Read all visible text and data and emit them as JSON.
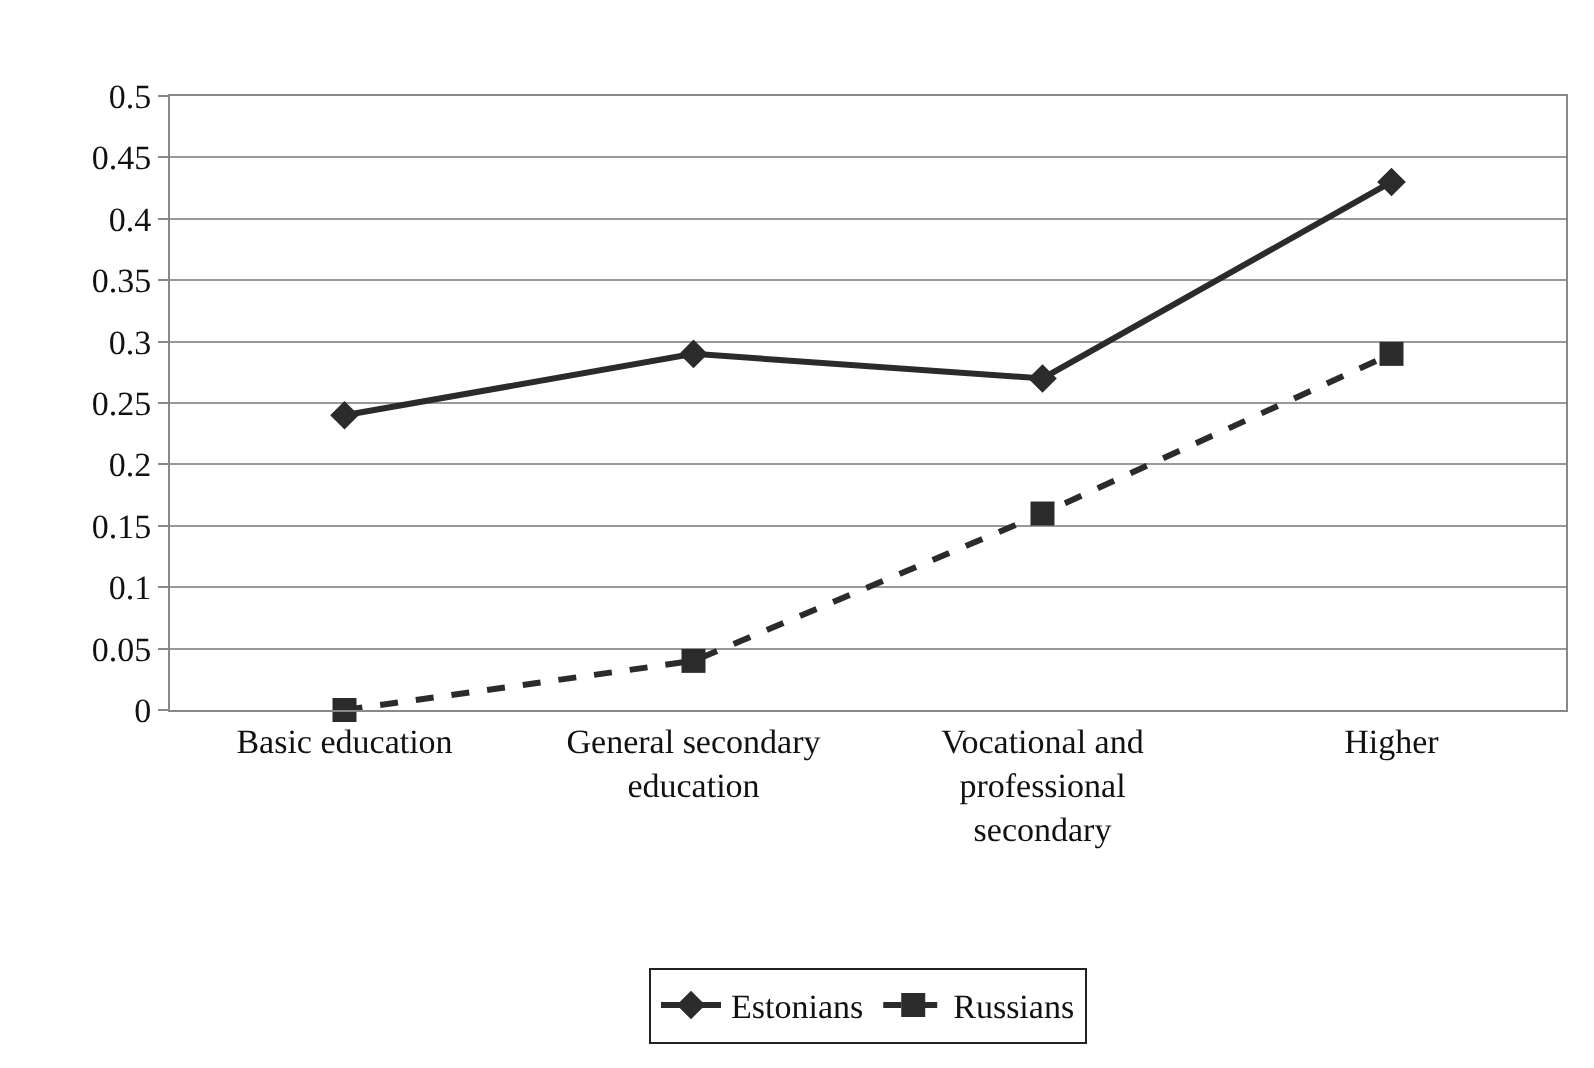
{
  "chart_data": {
    "type": "line",
    "categories": [
      "Basic education",
      "General secondary education",
      "Vocational and professional secondary",
      "Higher"
    ],
    "series": [
      {
        "name": "Estonians",
        "color": "#2b2b2b",
        "values": [
          0.24,
          0.29,
          0.27,
          0.43
        ],
        "marker": "diamond",
        "line_style": "solid"
      },
      {
        "name": "Russians",
        "color": "#2b2b2b",
        "values": [
          0,
          0.04,
          0.16,
          0.29
        ],
        "marker": "square",
        "line_style": "dashed"
      }
    ],
    "ylim": [
      0,
      0.5
    ],
    "yticks": [
      0,
      0.05,
      0.1,
      0.15,
      0.2,
      0.25,
      0.3,
      0.35,
      0.4,
      0.45,
      0.5
    ],
    "grid": "y",
    "legend": "bottom"
  }
}
